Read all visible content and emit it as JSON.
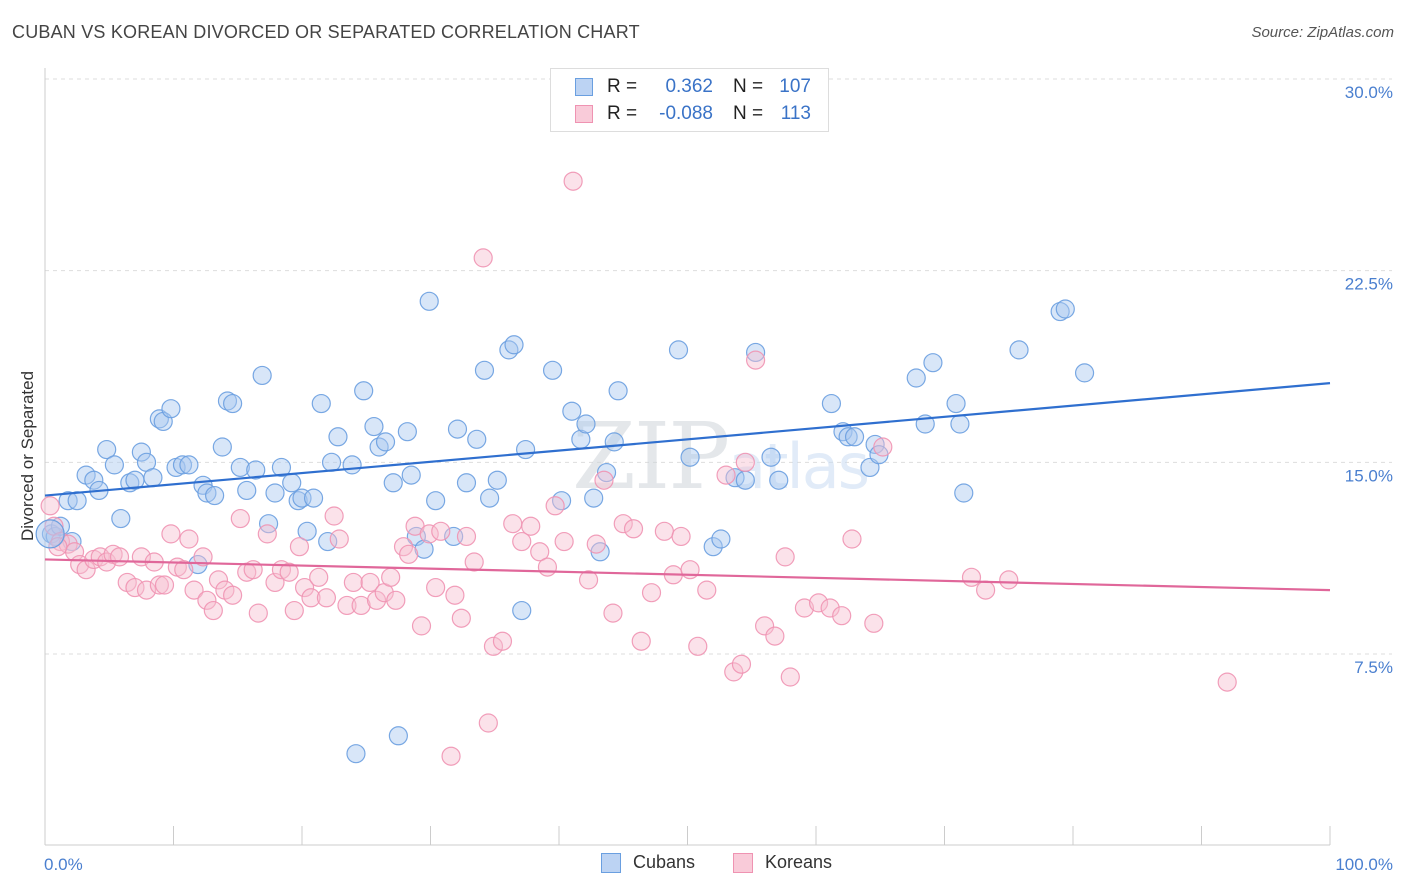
{
  "title": "CUBAN VS KOREAN DIVORCED OR SEPARATED CORRELATION CHART",
  "source": "Source: ZipAtlas.com",
  "watermark": "ZIPatlas",
  "colors": {
    "cubans_fill": "#a9c7ef",
    "cubans_stroke": "#6a9fe0",
    "cubans_line": "#2f6fcf",
    "koreans_fill": "#f7bfd0",
    "koreans_stroke": "#ef93b2",
    "koreans_line": "#e0679a",
    "tick_text": "#4a7fcf",
    "grid": "#dddddd"
  },
  "legend": {
    "rows": [
      {
        "r_label": "R =",
        "r_value": "0.362",
        "n_label": "N =",
        "n_value": "107"
      },
      {
        "r_label": "R =",
        "r_value": "-0.088",
        "n_label": "N =",
        "n_value": "113"
      }
    ],
    "bottom": [
      "Cubans",
      "Koreans"
    ]
  },
  "chart_data": {
    "type": "scatter",
    "title": "CUBAN VS KOREAN DIVORCED OR SEPARATED CORRELATION CHART",
    "xlabel": "",
    "ylabel": "Divorced or Separated",
    "xlim": [
      0,
      100
    ],
    "ylim": [
      0,
      31
    ],
    "x_tick_labels": [
      "0.0%",
      "100.0%"
    ],
    "y_ticks": [
      7.5,
      15.0,
      22.5,
      30.0
    ],
    "y_tick_labels": [
      "7.5%",
      "15.0%",
      "22.5%",
      "30.0%"
    ],
    "grid": "horizontal dashed",
    "legend_placement": "top-center",
    "series": [
      {
        "name": "Cubans",
        "trend": {
          "x": [
            0,
            100
          ],
          "y": [
            13.7,
            18.1
          ]
        },
        "points": [
          [
            0.5,
            12.2
          ],
          [
            0.8,
            12.1
          ],
          [
            1.2,
            12.5
          ],
          [
            1.8,
            13.5
          ],
          [
            2.5,
            13.5
          ],
          [
            3.2,
            14.5
          ],
          [
            3.8,
            14.3
          ],
          [
            4.2,
            13.9
          ],
          [
            4.8,
            15.5
          ],
          [
            5.4,
            14.9
          ],
          [
            5.9,
            12.8
          ],
          [
            6.6,
            14.2
          ],
          [
            7.0,
            14.3
          ],
          [
            7.5,
            15.4
          ],
          [
            7.9,
            15.0
          ],
          [
            8.4,
            14.4
          ],
          [
            8.9,
            16.7
          ],
          [
            9.2,
            16.6
          ],
          [
            9.8,
            17.1
          ],
          [
            10.2,
            14.8
          ],
          [
            10.7,
            14.9
          ],
          [
            11.2,
            14.9
          ],
          [
            11.9,
            11.0
          ],
          [
            12.3,
            14.1
          ],
          [
            12.6,
            13.8
          ],
          [
            13.2,
            13.7
          ],
          [
            13.8,
            15.6
          ],
          [
            14.2,
            17.4
          ],
          [
            14.6,
            17.3
          ],
          [
            15.2,
            14.8
          ],
          [
            15.7,
            13.9
          ],
          [
            16.4,
            14.7
          ],
          [
            16.9,
            18.4
          ],
          [
            17.4,
            12.6
          ],
          [
            17.9,
            13.8
          ],
          [
            18.4,
            14.8
          ],
          [
            19.2,
            14.2
          ],
          [
            19.7,
            13.5
          ],
          [
            20.0,
            13.6
          ],
          [
            20.4,
            12.3
          ],
          [
            20.9,
            13.6
          ],
          [
            21.5,
            17.3
          ],
          [
            22.0,
            11.9
          ],
          [
            22.3,
            15.0
          ],
          [
            22.8,
            16.0
          ],
          [
            23.9,
            14.9
          ],
          [
            24.2,
            3.6
          ],
          [
            24.8,
            17.8
          ],
          [
            25.6,
            16.4
          ],
          [
            26.0,
            15.6
          ],
          [
            26.5,
            15.8
          ],
          [
            27.1,
            14.2
          ],
          [
            27.5,
            4.3
          ],
          [
            28.2,
            16.2
          ],
          [
            28.5,
            14.5
          ],
          [
            28.9,
            12.1
          ],
          [
            29.5,
            11.6
          ],
          [
            29.9,
            21.3
          ],
          [
            30.4,
            13.5
          ],
          [
            31.8,
            12.1
          ],
          [
            32.1,
            16.3
          ],
          [
            32.8,
            14.2
          ],
          [
            33.6,
            15.9
          ],
          [
            34.2,
            18.6
          ],
          [
            34.6,
            13.6
          ],
          [
            35.2,
            14.3
          ],
          [
            36.1,
            19.4
          ],
          [
            36.5,
            19.6
          ],
          [
            37.1,
            9.2
          ],
          [
            37.4,
            15.5
          ],
          [
            39.5,
            18.6
          ],
          [
            40.2,
            13.5
          ],
          [
            41.0,
            17.0
          ],
          [
            41.7,
            15.9
          ],
          [
            42.1,
            16.5
          ],
          [
            42.7,
            13.6
          ],
          [
            43.2,
            11.5
          ],
          [
            43.7,
            14.6
          ],
          [
            44.3,
            15.8
          ],
          [
            44.6,
            17.8
          ],
          [
            49.3,
            19.4
          ],
          [
            50.2,
            15.2
          ],
          [
            52.0,
            11.7
          ],
          [
            52.6,
            12.0
          ],
          [
            53.7,
            14.4
          ],
          [
            54.5,
            14.3
          ],
          [
            55.3,
            19.3
          ],
          [
            56.5,
            15.2
          ],
          [
            57.1,
            14.3
          ],
          [
            61.2,
            17.3
          ],
          [
            62.1,
            16.2
          ],
          [
            62.5,
            16.0
          ],
          [
            63.0,
            16.0
          ],
          [
            64.2,
            14.8
          ],
          [
            64.6,
            15.7
          ],
          [
            64.9,
            15.3
          ],
          [
            67.8,
            18.3
          ],
          [
            68.5,
            16.5
          ],
          [
            69.1,
            18.9
          ],
          [
            71.5,
            13.8
          ],
          [
            70.9,
            17.3
          ],
          [
            71.2,
            16.5
          ],
          [
            75.8,
            19.4
          ],
          [
            79.0,
            20.9
          ],
          [
            79.4,
            21.0
          ],
          [
            80.9,
            18.5
          ],
          [
            2.1,
            11.9
          ]
        ]
      },
      {
        "name": "Koreans",
        "trend": {
          "x": [
            0,
            100
          ],
          "y": [
            11.2,
            10.0
          ]
        },
        "points": [
          [
            0.4,
            13.3
          ],
          [
            0.7,
            12.5
          ],
          [
            1.2,
            11.9
          ],
          [
            1.8,
            11.8
          ],
          [
            2.3,
            11.5
          ],
          [
            2.7,
            11.0
          ],
          [
            3.2,
            10.8
          ],
          [
            3.8,
            11.2
          ],
          [
            4.3,
            11.3
          ],
          [
            4.8,
            11.1
          ],
          [
            5.3,
            11.4
          ],
          [
            5.8,
            11.3
          ],
          [
            6.4,
            10.3
          ],
          [
            7.0,
            10.1
          ],
          [
            7.5,
            11.3
          ],
          [
            7.9,
            10.0
          ],
          [
            8.5,
            11.1
          ],
          [
            8.9,
            10.2
          ],
          [
            9.3,
            10.2
          ],
          [
            9.8,
            12.2
          ],
          [
            10.3,
            10.9
          ],
          [
            10.8,
            10.8
          ],
          [
            11.2,
            12.0
          ],
          [
            11.6,
            10.0
          ],
          [
            12.3,
            11.3
          ],
          [
            12.6,
            9.6
          ],
          [
            13.1,
            9.2
          ],
          [
            13.5,
            10.4
          ],
          [
            14.0,
            10.0
          ],
          [
            14.6,
            9.8
          ],
          [
            15.2,
            12.8
          ],
          [
            15.7,
            10.7
          ],
          [
            16.2,
            10.8
          ],
          [
            16.6,
            9.1
          ],
          [
            17.3,
            12.2
          ],
          [
            17.9,
            10.3
          ],
          [
            18.4,
            10.8
          ],
          [
            19.0,
            10.7
          ],
          [
            19.4,
            9.2
          ],
          [
            19.8,
            11.7
          ],
          [
            20.2,
            10.1
          ],
          [
            20.7,
            9.7
          ],
          [
            21.3,
            10.5
          ],
          [
            21.9,
            9.7
          ],
          [
            22.5,
            12.9
          ],
          [
            22.9,
            12.0
          ],
          [
            23.5,
            9.4
          ],
          [
            24.0,
            10.3
          ],
          [
            24.6,
            9.4
          ],
          [
            25.3,
            10.3
          ],
          [
            25.8,
            9.6
          ],
          [
            26.4,
            9.9
          ],
          [
            26.9,
            10.5
          ],
          [
            27.3,
            9.6
          ],
          [
            27.9,
            11.7
          ],
          [
            28.3,
            11.4
          ],
          [
            28.8,
            12.5
          ],
          [
            29.3,
            8.6
          ],
          [
            29.9,
            12.2
          ],
          [
            30.4,
            10.1
          ],
          [
            30.8,
            12.3
          ],
          [
            31.9,
            9.8
          ],
          [
            32.4,
            8.9
          ],
          [
            32.8,
            12.1
          ],
          [
            33.4,
            11.1
          ],
          [
            34.1,
            23.0
          ],
          [
            34.9,
            7.8
          ],
          [
            35.6,
            8.0
          ],
          [
            36.4,
            12.6
          ],
          [
            37.1,
            11.9
          ],
          [
            37.8,
            12.5
          ],
          [
            38.5,
            11.5
          ],
          [
            39.1,
            10.9
          ],
          [
            39.7,
            13.3
          ],
          [
            40.4,
            11.9
          ],
          [
            41.1,
            26.0
          ],
          [
            42.3,
            10.4
          ],
          [
            42.9,
            11.8
          ],
          [
            43.5,
            14.3
          ],
          [
            44.2,
            9.1
          ],
          [
            45.0,
            12.6
          ],
          [
            45.8,
            12.4
          ],
          [
            46.4,
            8.0
          ],
          [
            47.2,
            9.9
          ],
          [
            48.2,
            12.3
          ],
          [
            48.9,
            10.6
          ],
          [
            49.5,
            12.1
          ],
          [
            50.2,
            10.8
          ],
          [
            50.8,
            7.8
          ],
          [
            51.5,
            10.0
          ],
          [
            53.0,
            14.5
          ],
          [
            53.6,
            6.8
          ],
          [
            54.2,
            7.1
          ],
          [
            54.5,
            15.0
          ],
          [
            55.3,
            19.0
          ],
          [
            56.0,
            8.6
          ],
          [
            56.8,
            8.2
          ],
          [
            57.6,
            11.3
          ],
          [
            58.0,
            6.6
          ],
          [
            59.1,
            9.3
          ],
          [
            60.2,
            9.5
          ],
          [
            61.1,
            9.3
          ],
          [
            62.0,
            9.0
          ],
          [
            62.8,
            12.0
          ],
          [
            64.5,
            8.7
          ],
          [
            65.2,
            15.6
          ],
          [
            72.1,
            10.5
          ],
          [
            73.2,
            10.0
          ],
          [
            75.0,
            10.4
          ],
          [
            92.0,
            6.4
          ],
          [
            34.5,
            4.8
          ],
          [
            31.6,
            3.5
          ],
          [
            1.0,
            11.7
          ]
        ]
      }
    ]
  }
}
